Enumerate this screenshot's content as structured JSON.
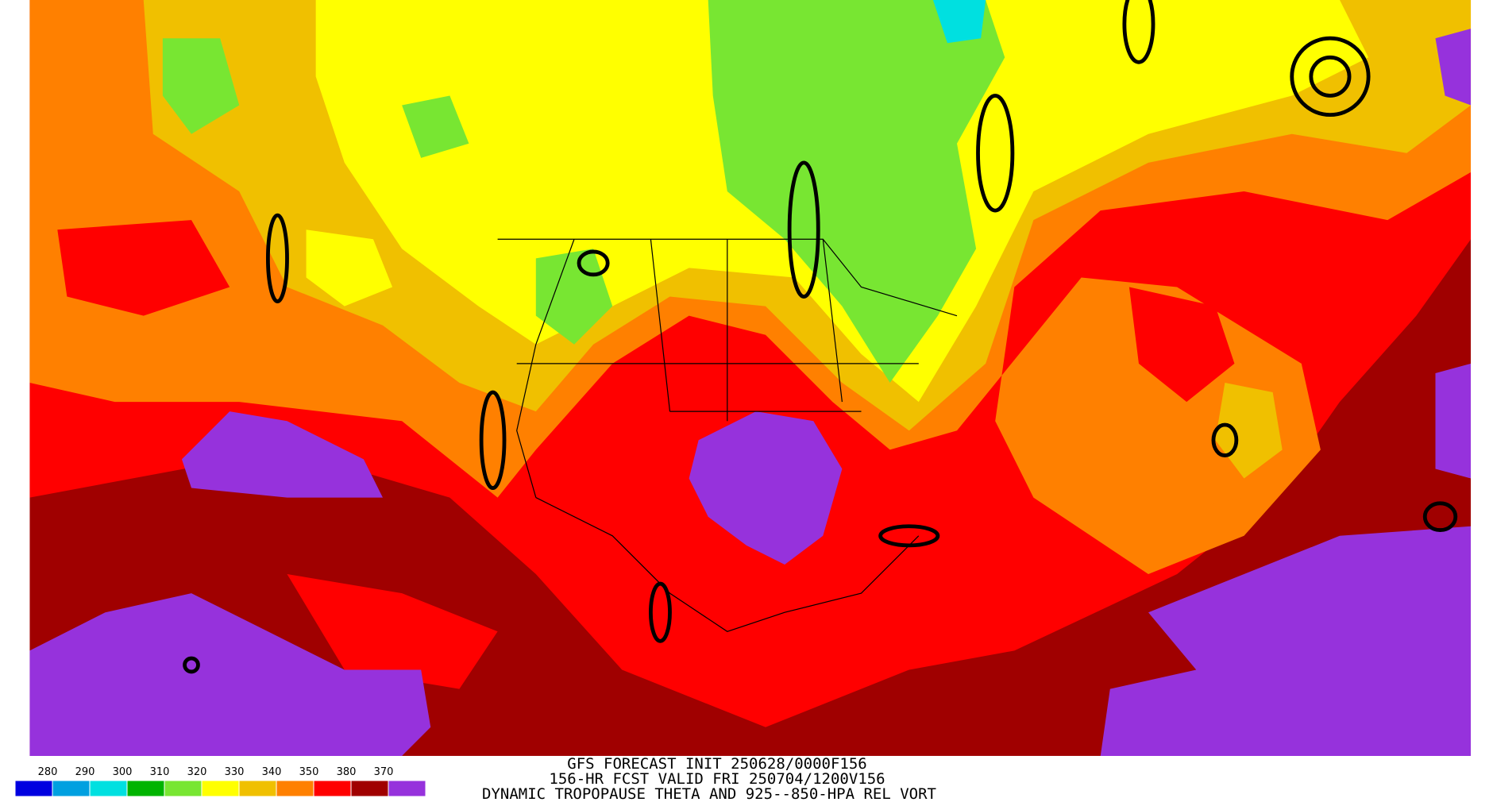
{
  "header": {
    "lines": [
      "GFS FORECAST INIT 250628/0000F156",
      "156-HR FCST VALID FRI 250704/1200V156",
      "DYNAMIC TROPOPAUSE THETA AND 925--850-HPA REL VORT"
    ]
  },
  "legend": {
    "labels": [
      "280",
      "290",
      "300",
      "310",
      "320",
      "330",
      "340",
      "350",
      "380",
      "370"
    ],
    "colors": [
      "#0000e0",
      "#00a0e0",
      "#00e0e0",
      "#00b400",
      "#78e632",
      "#ffff00",
      "#f0c000",
      "#ff8000",
      "#ff0000",
      "#a00000",
      "#9632dc"
    ]
  }
}
